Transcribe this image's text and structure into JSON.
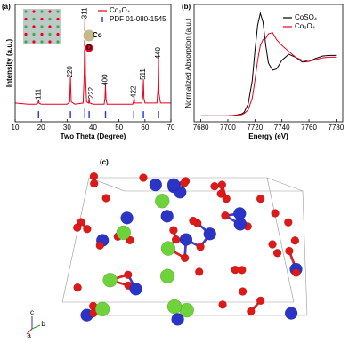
{
  "chart_data": [
    {
      "type": "line",
      "panel_label": "(a)",
      "xlabel": "Two Theta (Degree)",
      "ylabel": "Intensity (a.u.)",
      "xlim": [
        10,
        70
      ],
      "xticks": [
        10,
        20,
        30,
        40,
        50,
        60,
        70
      ],
      "ylim": [
        0,
        100
      ],
      "legend": "top-right",
      "inset_legend": [
        "Co",
        "O"
      ],
      "series": [
        {
          "name": "Co₃O₄",
          "color": "#e8001c",
          "type": "line",
          "x": [
            10,
            15,
            18,
            18.8,
            19,
            19.2,
            20,
            25,
            30,
            31.0,
            31.3,
            31.6,
            33,
            36.2,
            36.6,
            36.85,
            37.1,
            37.5,
            38.3,
            38.5,
            38.7,
            40,
            44.3,
            44.6,
            44.8,
            45,
            45.4,
            50,
            55.3,
            55.6,
            55.8,
            56,
            58.8,
            59.2,
            59.4,
            59.6,
            60,
            64.6,
            65,
            65.2,
            65.4,
            66,
            70
          ],
          "values": [
            16,
            15,
            15,
            16,
            19,
            16,
            15,
            15,
            15,
            17,
            38,
            17,
            15,
            16,
            40,
            88,
            40,
            17,
            16,
            20,
            16,
            15,
            15,
            20,
            31,
            19,
            15,
            15,
            15,
            17,
            21,
            16,
            16,
            22,
            36,
            20,
            16,
            16,
            28,
            54,
            24,
            16,
            16
          ]
        },
        {
          "name": "PDF 01-080-1545",
          "color": "#2233dd",
          "type": "stick",
          "x": [
            19.0,
            31.3,
            36.85,
            38.5,
            44.8,
            55.7,
            59.4,
            65.2
          ],
          "values": [
            5,
            5,
            7,
            5,
            5,
            5,
            5,
            5
          ],
          "labels": [
            "111",
            "220",
            "311",
            "222",
            "400",
            "422",
            "511",
            "440"
          ]
        }
      ]
    },
    {
      "type": "line",
      "panel_label": "(b)",
      "xlabel": "Energy (eV)",
      "ylabel": "Normalized Absorption (a.u.)",
      "xlim": [
        7675,
        7785
      ],
      "xticks": [
        7680,
        7700,
        7720,
        7740,
        7760,
        7780
      ],
      "ylim": [
        -0.1,
        1.9
      ],
      "legend": "top-right",
      "series": [
        {
          "name": "CoSO₄",
          "color": "#000000",
          "type": "line",
          "x": [
            7680,
            7700,
            7705,
            7710,
            7712,
            7715,
            7718,
            7720,
            7722,
            7724,
            7726,
            7728,
            7730,
            7733,
            7736,
            7740,
            7745,
            7750,
            7755,
            7760,
            7765,
            7770,
            7775,
            7780
          ],
          "values": [
            0,
            0,
            0.01,
            0.03,
            0.06,
            0.2,
            0.6,
            1.1,
            1.55,
            1.75,
            1.6,
            1.2,
            0.9,
            0.78,
            0.8,
            0.95,
            1.05,
            1.0,
            0.92,
            0.93,
            0.98,
            1.02,
            1.03,
            1.03
          ]
        },
        {
          "name": "Co₃O₄",
          "color": "#e8001c",
          "type": "line",
          "x": [
            7680,
            7700,
            7705,
            7710,
            7712,
            7715,
            7718,
            7720,
            7722,
            7724,
            7726,
            7728,
            7730,
            7733,
            7736,
            7740,
            7745,
            7750,
            7755,
            7760,
            7765,
            7770,
            7775,
            7780
          ],
          "values": [
            0,
            0,
            0.01,
            0.02,
            0.04,
            0.1,
            0.3,
            0.6,
            0.95,
            1.2,
            1.3,
            1.32,
            1.4,
            1.42,
            1.3,
            1.2,
            1.1,
            1.0,
            0.95,
            0.93,
            0.96,
            0.99,
            1.0,
            1.0
          ]
        }
      ]
    }
  ],
  "structure": {
    "panel_label": "(c)",
    "axes": [
      "c",
      "b",
      "a"
    ]
  }
}
